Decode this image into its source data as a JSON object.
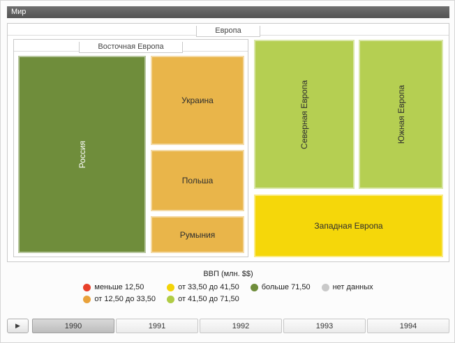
{
  "window": {
    "title": "Мир"
  },
  "treemap": {
    "europe_label": "Европа",
    "eastern_label": "Восточная Европа",
    "tiles": {
      "russia": {
        "label": "Россия",
        "color": "#6f8d3b"
      },
      "ukraine": {
        "label": "Украина",
        "color": "#e9b54a"
      },
      "poland": {
        "label": "Польша",
        "color": "#e9b54a"
      },
      "romania": {
        "label": "Румыния",
        "color": "#e9b54a"
      },
      "northern": {
        "label": "Северная Европа",
        "color": "#b5cf52"
      },
      "southern": {
        "label": "Южная Европа",
        "color": "#b5cf52"
      },
      "western": {
        "label": "Западная Европа",
        "color": "#f5d70a"
      }
    }
  },
  "legend": {
    "title": "ВВП (млн. $$)",
    "items": [
      {
        "label": "меньше 12,50",
        "color": "#e8402a"
      },
      {
        "label": "от 12,50 до 33,50",
        "color": "#e9a23b"
      },
      {
        "label": "от 33,50 до 41,50",
        "color": "#f3d408"
      },
      {
        "label": "от 41,50 до 71,50",
        "color": "#b0cc45"
      },
      {
        "label": "больше 71,50",
        "color": "#6f8d3b"
      },
      {
        "label": "нет данных",
        "color": "#c9c9c9"
      }
    ]
  },
  "timeline": {
    "play_glyph": "▶",
    "years": [
      {
        "label": "1990",
        "selected": true
      },
      {
        "label": "1991",
        "selected": false
      },
      {
        "label": "1992",
        "selected": false
      },
      {
        "label": "1993",
        "selected": false
      },
      {
        "label": "1994",
        "selected": false
      }
    ]
  },
  "chart_data": {
    "type": "treemap",
    "title": "ВВП (млн. $$)",
    "breadcrumb": "Мир",
    "hierarchy": {
      "name": "Мир",
      "children": [
        {
          "name": "Европа",
          "children": [
            {
              "name": "Восточная Европа",
              "children": [
                {
                  "name": "Россия",
                  "value_bin": "больше 71,50"
                },
                {
                  "name": "Украина",
                  "value_bin": "от 12,50 до 33,50"
                },
                {
                  "name": "Польша",
                  "value_bin": "от 12,50 до 33,50"
                },
                {
                  "name": "Румыния",
                  "value_bin": "от 12,50 до 33,50"
                }
              ]
            },
            {
              "name": "Северная Европа",
              "value_bin": "от 41,50 до 71,50"
            },
            {
              "name": "Южная Европа",
              "value_bin": "от 41,50 до 71,50"
            },
            {
              "name": "Западная Европа",
              "value_bin": "от 33,50 до 41,50"
            }
          ]
        }
      ]
    },
    "legend_bins": [
      {
        "label": "меньше 12,50",
        "color": "#e8402a"
      },
      {
        "label": "от 12,50 до 33,50",
        "color": "#e9a23b"
      },
      {
        "label": "от 33,50 до 41,50",
        "color": "#f3d408"
      },
      {
        "label": "от 41,50 до 71,50",
        "color": "#b0cc45"
      },
      {
        "label": "больше 71,50",
        "color": "#6f8d3b"
      },
      {
        "label": "нет данных",
        "color": "#c9c9c9"
      }
    ],
    "timeline": {
      "years": [
        "1990",
        "1991",
        "1992",
        "1993",
        "1994"
      ],
      "selected": "1990"
    }
  }
}
